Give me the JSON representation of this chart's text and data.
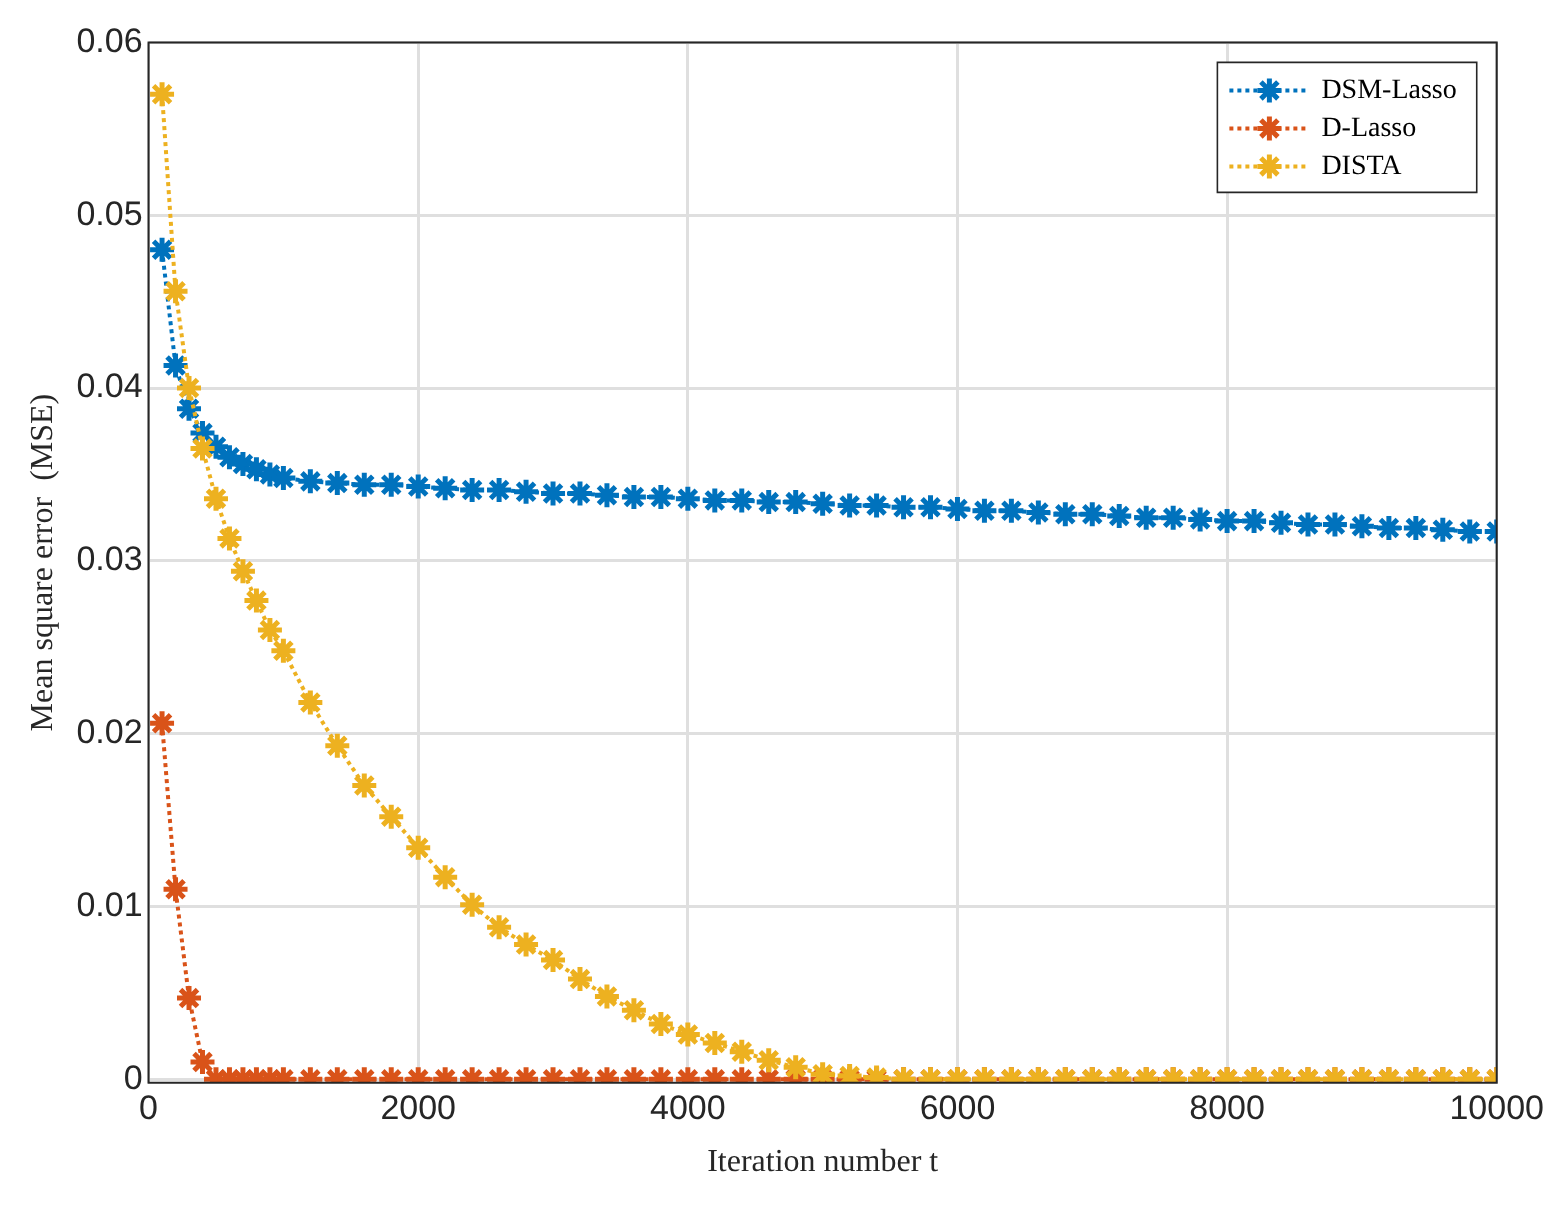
{
  "chart_data": {
    "type": "line",
    "xlabel": "Iteration number t",
    "ylabel": "Mean square error  (MSE)",
    "x": [
      100,
      200,
      300,
      400,
      500,
      600,
      700,
      800,
      900,
      1000,
      1200,
      1400,
      1600,
      1800,
      2000,
      2200,
      2400,
      2600,
      2800,
      3000,
      3200,
      3400,
      3600,
      3800,
      4000,
      4200,
      4400,
      4600,
      4800,
      5000,
      5200,
      5400,
      5600,
      5800,
      6000,
      6200,
      6400,
      6600,
      6800,
      7000,
      7200,
      7400,
      7600,
      7800,
      8000,
      8200,
      8400,
      8600,
      8800,
      9000,
      9200,
      9400,
      9600,
      9800,
      10000
    ],
    "series": [
      {
        "name": "DSM-Lasso",
        "color": "#0072bd",
        "values": [
          0.048,
          0.0413,
          0.0388,
          0.0374,
          0.0366,
          0.036,
          0.0356,
          0.0353,
          0.035,
          0.0348,
          0.0346,
          0.0345,
          0.0344,
          0.0344,
          0.0343,
          0.0342,
          0.0341,
          0.0341,
          0.034,
          0.0339,
          0.0339,
          0.0338,
          0.0337,
          0.0337,
          0.0336,
          0.0335,
          0.0335,
          0.0334,
          0.0334,
          0.0333,
          0.0332,
          0.0332,
          0.0331,
          0.0331,
          0.033,
          0.0329,
          0.0329,
          0.0328,
          0.0327,
          0.0327,
          0.0326,
          0.0325,
          0.0325,
          0.0324,
          0.0323,
          0.0323,
          0.0322,
          0.0321,
          0.0321,
          0.032,
          0.0319,
          0.0319,
          0.0318,
          0.0317,
          0.0317
        ]
      },
      {
        "name": "D-Lasso",
        "color": "#d95319",
        "values": [
          0.0206,
          0.011,
          0.0047,
          0.001,
          0,
          0,
          0,
          0,
          0,
          0,
          0,
          0,
          0,
          0,
          0,
          0,
          0,
          0,
          0,
          0,
          0,
          0,
          0,
          0,
          0,
          0,
          0,
          0,
          0,
          0,
          0,
          0,
          0,
          0,
          0,
          0,
          0,
          0,
          0,
          0,
          0,
          0,
          0,
          0,
          0,
          0,
          0,
          0,
          0,
          0,
          0,
          0,
          0,
          0,
          0
        ]
      },
      {
        "name": "DISTA",
        "color": "#edb120",
        "values": [
          0.057,
          0.0456,
          0.04,
          0.0365,
          0.0336,
          0.0313,
          0.0294,
          0.0277,
          0.026,
          0.0248,
          0.0218,
          0.0193,
          0.017,
          0.0152,
          0.0134,
          0.0117,
          0.0101,
          0.0088,
          0.0078,
          0.0069,
          0.0058,
          0.0048,
          0.004,
          0.0032,
          0.0026,
          0.0021,
          0.0016,
          0.0011,
          0.0007,
          0.0003,
          0.0002,
          0.0001,
          0,
          0,
          0,
          0,
          0,
          0,
          0,
          0,
          0,
          0,
          0,
          0,
          0,
          0,
          0,
          0,
          0,
          0,
          0,
          0,
          0,
          0,
          0
        ]
      }
    ],
    "xlim": [
      0,
      10000
    ],
    "xticks": [
      0,
      2000,
      4000,
      6000,
      8000,
      10000
    ],
    "ylim": [
      -0.0002,
      0.06
    ],
    "yticks": [
      0,
      0.01,
      0.02,
      0.03,
      0.04,
      0.05,
      0.06
    ],
    "grid": true,
    "legend": "top right",
    "marker": "cross",
    "line_style": "dotted"
  }
}
